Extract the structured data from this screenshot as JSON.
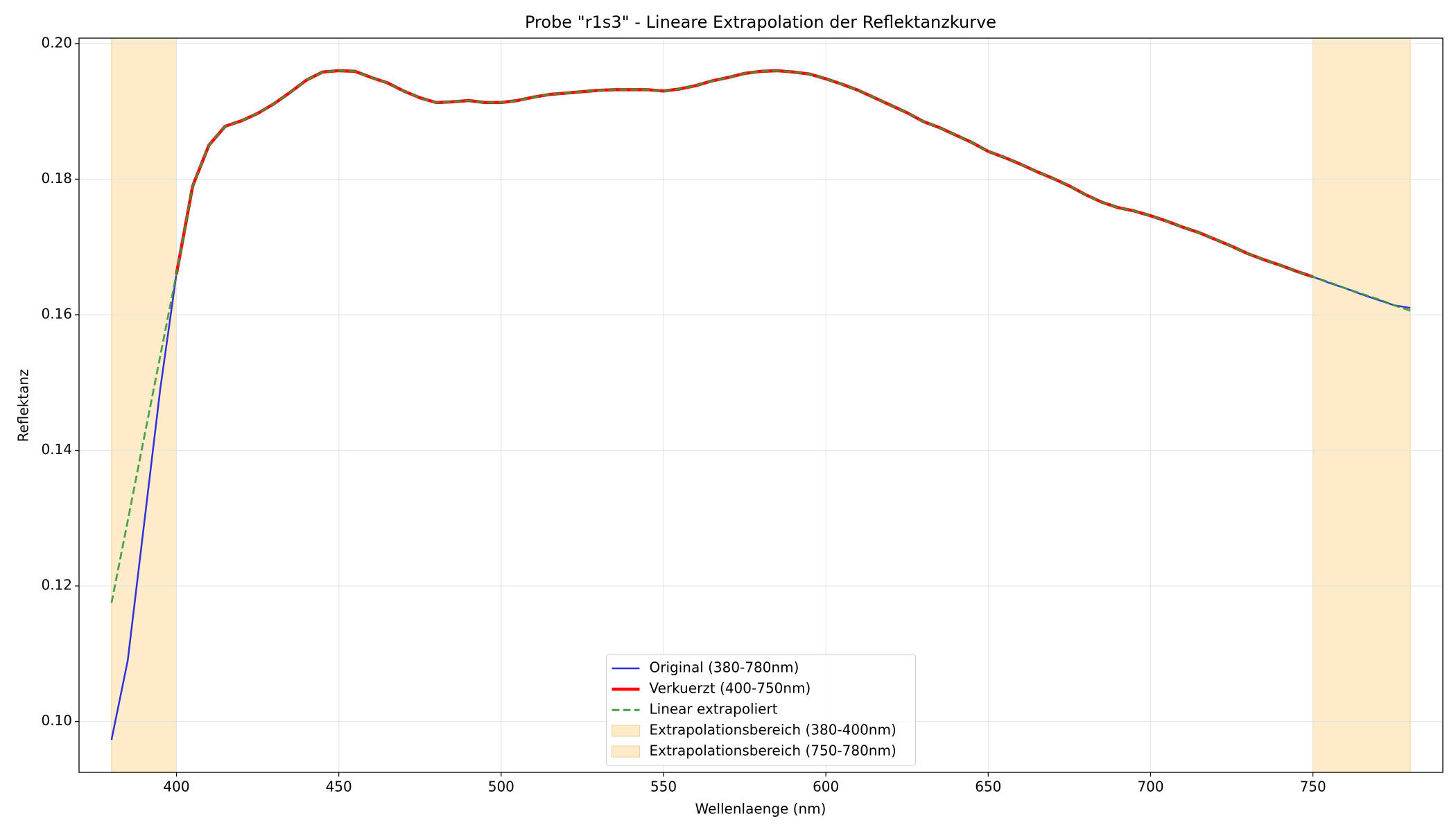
{
  "chart_data": {
    "type": "line",
    "title": "Probe \"r1s3\" - Lineare Extrapolation der Reflektanzkurve",
    "x_label": "Wellenlaenge (nm)",
    "y_label": "Reflektanz",
    "x": [
      380,
      385,
      390,
      395,
      400,
      405,
      410,
      415,
      420,
      425,
      430,
      435,
      440,
      445,
      450,
      455,
      460,
      465,
      470,
      475,
      480,
      485,
      490,
      495,
      500,
      505,
      510,
      515,
      520,
      525,
      530,
      535,
      540,
      545,
      550,
      555,
      560,
      565,
      570,
      575,
      580,
      585,
      590,
      595,
      600,
      605,
      610,
      615,
      620,
      625,
      630,
      635,
      640,
      645,
      650,
      655,
      660,
      665,
      670,
      675,
      680,
      685,
      690,
      695,
      700,
      705,
      710,
      715,
      720,
      725,
      730,
      735,
      740,
      745,
      750,
      755,
      760,
      765,
      770,
      775,
      780
    ],
    "series": [
      {
        "name": "Original (380-780nm)",
        "color": "#2f2fe0",
        "linewidth": 2.5,
        "dashed": false,
        "values": [
          0.0973,
          0.109,
          0.129,
          0.149,
          0.166,
          0.179,
          0.185,
          0.1878,
          0.1886,
          0.1897,
          0.1911,
          0.1928,
          0.1946,
          0.1958,
          0.196,
          0.1959,
          0.195,
          0.1942,
          0.193,
          0.192,
          0.1913,
          0.1914,
          0.1916,
          0.1913,
          0.1913,
          0.1916,
          0.1921,
          0.1925,
          0.1927,
          0.1929,
          0.1931,
          0.1932,
          0.1932,
          0.1932,
          0.193,
          0.1933,
          0.1938,
          0.1945,
          0.195,
          0.1956,
          0.1959,
          0.196,
          0.1958,
          0.1955,
          0.1948,
          0.194,
          0.1931,
          0.192,
          0.1909,
          0.1898,
          0.1885,
          0.1876,
          0.1865,
          0.1854,
          0.1841,
          0.1832,
          0.1822,
          0.1811,
          0.1801,
          0.179,
          0.1777,
          0.1766,
          0.1758,
          0.1753,
          0.1746,
          0.1738,
          0.1729,
          0.1721,
          0.1711,
          0.1701,
          0.169,
          0.1681,
          0.1673,
          0.1664,
          0.1656,
          0.1647,
          0.1639,
          0.163,
          0.1622,
          0.1614,
          0.161
        ]
      },
      {
        "name": "Verkuerzt (400-750nm)",
        "color": "#ff0000",
        "linewidth": 4.5,
        "dashed": false,
        "values": [
          null,
          null,
          null,
          null,
          0.166,
          0.179,
          0.185,
          0.1878,
          0.1886,
          0.1897,
          0.1911,
          0.1928,
          0.1946,
          0.1958,
          0.196,
          0.1959,
          0.195,
          0.1942,
          0.193,
          0.192,
          0.1913,
          0.1914,
          0.1916,
          0.1913,
          0.1913,
          0.1916,
          0.1921,
          0.1925,
          0.1927,
          0.1929,
          0.1931,
          0.1932,
          0.1932,
          0.1932,
          0.193,
          0.1933,
          0.1938,
          0.1945,
          0.195,
          0.1956,
          0.1959,
          0.196,
          0.1958,
          0.1955,
          0.1948,
          0.194,
          0.1931,
          0.192,
          0.1909,
          0.1898,
          0.1885,
          0.1876,
          0.1865,
          0.1854,
          0.1841,
          0.1832,
          0.1822,
          0.1811,
          0.1801,
          0.179,
          0.1777,
          0.1766,
          0.1758,
          0.1753,
          0.1746,
          0.1738,
          0.1729,
          0.1721,
          0.1711,
          0.1701,
          0.169,
          0.1681,
          0.1673,
          0.1664,
          0.1656,
          null,
          null,
          null,
          null,
          null,
          null
        ]
      },
      {
        "name": "Linear extrapoliert",
        "color": "#3a9a3a",
        "linewidth": 2.8,
        "dashed": true,
        "values": [
          0.1175,
          0.1296,
          0.1418,
          0.1539,
          0.166,
          0.179,
          0.185,
          0.1878,
          0.1886,
          0.1897,
          0.1911,
          0.1928,
          0.1946,
          0.1958,
          0.196,
          0.1959,
          0.195,
          0.1942,
          0.193,
          0.192,
          0.1913,
          0.1914,
          0.1916,
          0.1913,
          0.1913,
          0.1916,
          0.1921,
          0.1925,
          0.1927,
          0.1929,
          0.1931,
          0.1932,
          0.1932,
          0.1932,
          0.193,
          0.1933,
          0.1938,
          0.1945,
          0.195,
          0.1956,
          0.1959,
          0.196,
          0.1958,
          0.1955,
          0.1948,
          0.194,
          0.1931,
          0.192,
          0.1909,
          0.1898,
          0.1885,
          0.1876,
          0.1865,
          0.1854,
          0.1841,
          0.1832,
          0.1822,
          0.1811,
          0.1801,
          0.179,
          0.1777,
          0.1766,
          0.1758,
          0.1753,
          0.1746,
          0.1738,
          0.1729,
          0.1721,
          0.1711,
          0.1701,
          0.169,
          0.1681,
          0.1673,
          0.1664,
          0.1656,
          0.1648,
          0.1639,
          0.1631,
          0.1623,
          0.1614,
          0.1606
        ]
      }
    ],
    "spans": [
      {
        "name": "Extrapolationsbereich (380-400nm)",
        "range": [
          380,
          400
        ],
        "color": "#fdebc9"
      },
      {
        "name": "Extrapolationsbereich (750-780nm)",
        "range": [
          750,
          780
        ],
        "color": "#fdebc9"
      }
    ],
    "xlim": [
      370,
      790
    ],
    "ylim": [
      0.0925,
      0.2008
    ],
    "xticks": [
      400,
      450,
      500,
      550,
      600,
      650,
      700,
      750
    ],
    "yticks": [
      {
        "value": 0.1,
        "label": "0.10"
      },
      0.12,
      0.14,
      0.16,
      0.18,
      {
        "value": 0.2,
        "label": "0.20"
      }
    ],
    "grid": true,
    "legend": "lower center"
  }
}
